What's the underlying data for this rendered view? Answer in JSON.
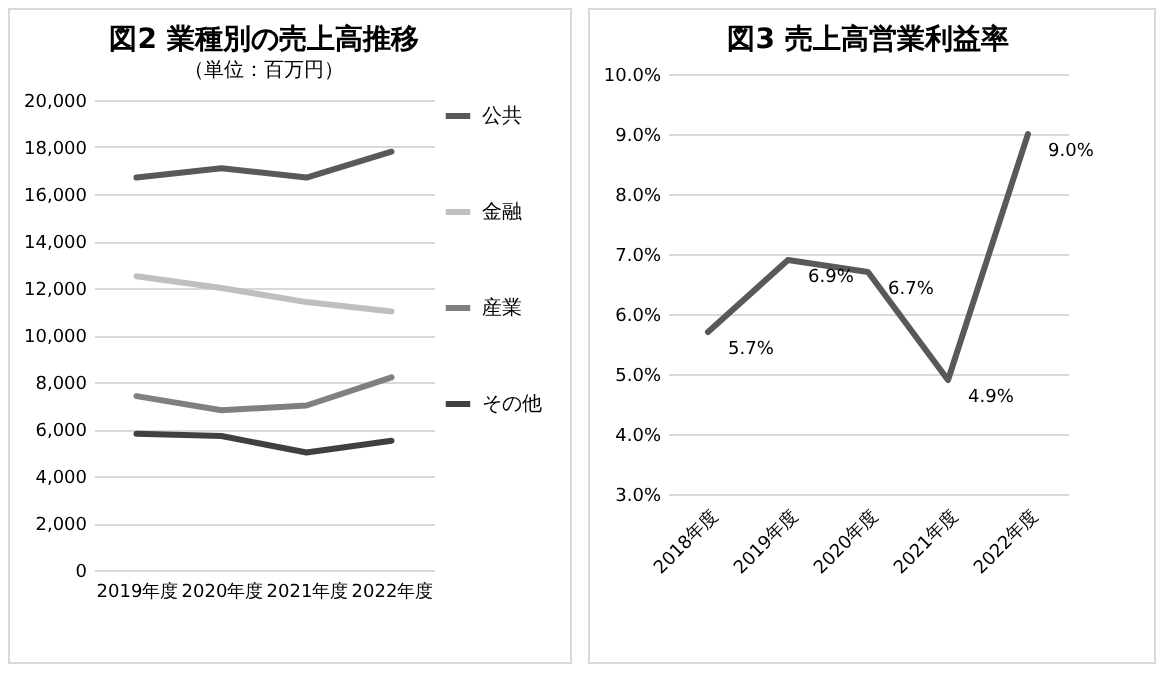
{
  "chart_data": [
    {
      "type": "line",
      "title": "図2 業種別の売上高推移",
      "subtitle": "（単位：百万円）",
      "categories": [
        "2019年度",
        "2020年度",
        "2021年度",
        "2022年度"
      ],
      "series": [
        {
          "name": "公共",
          "color": "#595959",
          "values": [
            16700,
            17100,
            16700,
            17800
          ]
        },
        {
          "name": "金融",
          "color": "#bfbfbf",
          "values": [
            12500,
            12000,
            11400,
            11000
          ]
        },
        {
          "name": "産業",
          "color": "#808080",
          "values": [
            7400,
            6800,
            7000,
            8200
          ]
        },
        {
          "name": "その他",
          "color": "#404040",
          "values": [
            5800,
            5700,
            5000,
            5500
          ]
        }
      ],
      "ylim": [
        0,
        20000
      ],
      "yticks": [
        0,
        {
          "value": 2000,
          "label": "2,000"
        },
        {
          "value": 4000,
          "label": "4,000"
        },
        {
          "value": 6000,
          "label": "6,000"
        },
        {
          "value": 8000,
          "label": "8,000"
        },
        {
          "value": 10000,
          "label": "10,000"
        },
        {
          "value": 12000,
          "label": "12,000"
        },
        {
          "value": 14000,
          "label": "14,000"
        },
        {
          "value": 16000,
          "label": "16,000"
        },
        {
          "value": 18000,
          "label": "18,000"
        },
        {
          "value": 20000,
          "label": "20,000"
        }
      ],
      "grid": "y",
      "legend": "right"
    },
    {
      "type": "line",
      "title": "図3 売上高営業利益率",
      "categories": [
        "2018年度",
        "2019年度",
        "2020年度",
        "2021年度",
        "2022年度"
      ],
      "series": [
        {
          "color": "#595959",
          "values": [
            5.7,
            6.9,
            6.7,
            4.9,
            9.0
          ],
          "value_labels": [
            "5.7%",
            "6.9%",
            "6.7%",
            "4.9%",
            "9.0%"
          ]
        }
      ],
      "ylim": [
        3,
        10
      ],
      "yticks": [
        {
          "value": 3,
          "label": "3.0%"
        },
        {
          "value": 4,
          "label": "4.0%"
        },
        {
          "value": 5,
          "label": "5.0%"
        },
        {
          "value": 6,
          "label": "6.0%"
        },
        {
          "value": 7,
          "label": "7.0%"
        },
        {
          "value": 8,
          "label": "8.0%"
        },
        {
          "value": 9,
          "label": "9.0%"
        },
        {
          "value": 10,
          "label": "10.0%"
        }
      ],
      "grid": "y"
    }
  ]
}
